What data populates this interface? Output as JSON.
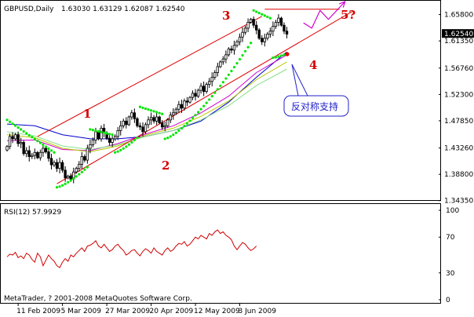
{
  "window": {
    "title": "GBPUSD,Daily",
    "ohlc": "1.63030 1.63129 1.62087 1.62540",
    "rsi_title": "RSI(12) 57.9929",
    "copyright": "MetaTrader, ? 2001-2008 MetaQuotes Software Corp."
  },
  "annotations": {
    "wave1": "1",
    "wave2": "2",
    "wave3": "3",
    "wave4": "4",
    "wave5": "5?",
    "support_note": "反对称支持"
  },
  "colors": {
    "background": "#ffffff",
    "candle": "#000000",
    "psar": "#00e600",
    "channel": "#e00000",
    "ma_blue": "#0000cc",
    "ma_magenta": "#d000d0",
    "ma_olive": "#b8c800",
    "ma_lightgreen": "#88e088",
    "projection": "#d000d0",
    "rsi": "#d00000",
    "current_price_bg": "#000000",
    "current_price_fg": "#ffffff"
  },
  "chart_data": [
    {
      "type": "candlestick",
      "ylim": [
        1.3458,
        1.68
      ],
      "y_ticks": [
        "1.65800",
        "1.61350",
        "1.56760",
        "1.52300",
        "1.47850",
        "1.43260",
        "1.38800",
        "1.34350"
      ],
      "current_price": "1.62540",
      "x_ticks": [
        "11 Feb 2009",
        "5 Mar 2009",
        "27 Mar 2009",
        "20 Apr 2009",
        "12 May 2009",
        "3 Jun 2009"
      ],
      "series": [
        {
          "kind": "ohlc",
          "start": "2009-02-05",
          "closes": [
            1.435,
            1.452,
            1.448,
            1.455,
            1.44,
            1.442,
            1.423,
            1.428,
            1.418,
            1.42,
            1.425,
            1.416,
            1.425,
            1.432,
            1.426,
            1.415,
            1.404,
            1.408,
            1.398,
            1.408,
            1.395,
            1.382,
            1.385,
            1.38,
            1.392,
            1.398,
            1.405,
            1.418,
            1.412,
            1.432,
            1.438,
            1.446,
            1.46,
            1.448,
            1.466,
            1.458,
            1.449,
            1.442,
            1.448,
            1.452,
            1.462,
            1.47,
            1.478,
            1.472,
            1.485,
            1.492,
            1.482,
            1.47,
            1.468,
            1.46,
            1.472,
            1.48,
            1.484,
            1.478,
            1.485,
            1.475,
            1.468,
            1.47,
            1.48,
            1.488,
            1.492,
            1.498,
            1.506,
            1.5,
            1.512,
            1.51,
            1.518,
            1.525,
            1.52,
            1.53,
            1.537,
            1.528,
            1.54,
            1.545,
            1.552,
            1.56,
            1.57,
            1.578,
            1.583,
            1.59,
            1.6,
            1.598,
            1.606,
            1.612,
            1.62,
            1.628,
            1.635,
            1.645,
            1.65,
            1.64,
            1.632,
            1.618,
            1.612,
            1.618,
            1.625,
            1.63,
            1.638,
            1.645,
            1.652,
            1.64,
            1.63,
            1.625
          ]
        },
        {
          "kind": "parabolic_sar",
          "segments": [
            {
              "start": 0,
              "end": 17,
              "from": 1.48,
              "to": 1.425,
              "side": "above"
            },
            {
              "start": 18,
              "end": 29,
              "from": 1.366,
              "to": 1.4,
              "side": "below"
            },
            {
              "start": 30,
              "end": 38,
              "from": 1.464,
              "to": 1.455,
              "side": "above"
            },
            {
              "start": 39,
              "end": 47,
              "from": 1.425,
              "to": 1.45,
              "side": "below"
            },
            {
              "start": 48,
              "end": 56,
              "from": 1.502,
              "to": 1.49,
              "side": "above"
            },
            {
              "start": 57,
              "end": 88,
              "from": 1.448,
              "to": 1.61,
              "side": "below"
            },
            {
              "start": 89,
              "end": 95,
              "from": 1.665,
              "to": 1.652,
              "side": "above"
            },
            {
              "start": 96,
              "end": 101,
              "from": 1.585,
              "to": 1.592,
              "side": "below"
            }
          ]
        },
        {
          "kind": "moving_average",
          "color": "ma_blue",
          "points": [
            [
              0,
              1.473
            ],
            [
              10,
              1.47
            ],
            [
              20,
              1.455
            ],
            [
              30,
              1.448
            ],
            [
              40,
              1.448
            ],
            [
              50,
              1.452
            ],
            [
              60,
              1.462
            ],
            [
              70,
              1.478
            ],
            [
              80,
              1.51
            ],
            [
              90,
              1.552
            ],
            [
              101,
              1.595
            ]
          ]
        },
        {
          "kind": "moving_average",
          "color": "ma_magenta",
          "points": [
            [
              0,
              1.445
            ],
            [
              10,
              1.446
            ],
            [
              20,
              1.43
            ],
            [
              30,
              1.428
            ],
            [
              40,
              1.44
            ],
            [
              50,
              1.456
            ],
            [
              60,
              1.47
            ],
            [
              70,
              1.492
            ],
            [
              80,
              1.52
            ],
            [
              90,
              1.56
            ],
            [
              101,
              1.59
            ]
          ]
        },
        {
          "kind": "moving_average",
          "color": "ma_olive",
          "points": [
            [
              0,
              1.455
            ],
            [
              10,
              1.45
            ],
            [
              20,
              1.432
            ],
            [
              30,
              1.426
            ],
            [
              40,
              1.436
            ],
            [
              50,
              1.454
            ],
            [
              60,
              1.466
            ],
            [
              70,
              1.486
            ],
            [
              80,
              1.512
            ],
            [
              90,
              1.548
            ],
            [
              101,
              1.578
            ]
          ]
        },
        {
          "kind": "moving_average",
          "color": "ma_lightgreen",
          "points": [
            [
              0,
              1.46
            ],
            [
              10,
              1.453
            ],
            [
              20,
              1.436
            ],
            [
              30,
              1.43
            ],
            [
              40,
              1.438
            ],
            [
              50,
              1.452
            ],
            [
              60,
              1.462
            ],
            [
              70,
              1.48
            ],
            [
              80,
              1.504
            ],
            [
              90,
              1.538
            ],
            [
              101,
              1.566
            ]
          ]
        },
        {
          "kind": "trend_lines",
          "lines": [
            {
              "x1": 18,
              "y1": 1.372,
              "x2": 89,
              "y2": 1.566,
              "extend_to": 125
            },
            {
              "x1": 11,
              "y1": 1.452,
              "x2": 92,
              "y2": 1.655
            }
          ],
          "wave3_marker": {
            "x1": 93,
            "x2": 120,
            "y": 1.667
          }
        },
        {
          "kind": "projection",
          "points": [
            [
              107,
              1.644
            ],
            [
              110,
              1.635
            ],
            [
              113,
              1.665
            ],
            [
              116,
              1.65
            ],
            [
              122,
              1.68
            ]
          ]
        }
      ]
    },
    {
      "type": "line",
      "title": "RSI(12) 57.9929",
      "ylim": [
        0,
        100
      ],
      "y_ticks": [
        "100",
        "70",
        "30",
        "0"
      ],
      "series": [
        {
          "name": "RSI(12)",
          "start": 0,
          "values": [
            48,
            51,
            50,
            53,
            47,
            49,
            46,
            52,
            50,
            45,
            42,
            52,
            48,
            38,
            44,
            50,
            46,
            43,
            38,
            36,
            42,
            46,
            43,
            50,
            48,
            52,
            55,
            58,
            54,
            60,
            61,
            63,
            66,
            60,
            58,
            62,
            58,
            54,
            56,
            60,
            62,
            58,
            55,
            50,
            52,
            55,
            56,
            52,
            49,
            54,
            57,
            55,
            52,
            58,
            54,
            52,
            50,
            55,
            58,
            54,
            56,
            60,
            63,
            62,
            65,
            60,
            62,
            66,
            70,
            68,
            72,
            70,
            68,
            74,
            72,
            76,
            78,
            74,
            76,
            72,
            70,
            67,
            60,
            56,
            60,
            64,
            62,
            58,
            55,
            57,
            60
          ]
        }
      ]
    }
  ]
}
